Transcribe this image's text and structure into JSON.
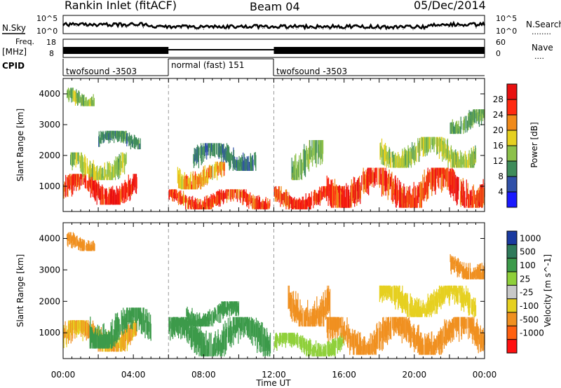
{
  "header": {
    "station": "Rankin Inlet (fitACF)",
    "beam": "Beam 04",
    "date": "05/Dec/2014"
  },
  "noise_panel": {
    "left_label": "N.Sky",
    "right_label": "N.Search",
    "right_dots": "........",
    "y_top": "10^5",
    "y_bottom": "10^0"
  },
  "freq_panel": {
    "left_label_1": "Freq.",
    "left_label_2": "[MHz]",
    "left_ticks": [
      "18",
      "8"
    ],
    "right_label": "Nave",
    "right_dots": "....",
    "right_ticks": [
      "60",
      "0"
    ]
  },
  "cpid_panel": {
    "label": "CPID",
    "segments": [
      {
        "label": "twofsound -3503",
        "start_hour": 0,
        "end_hour": 6
      },
      {
        "label": "normal (fast) 151",
        "start_hour": 6,
        "end_hour": 12
      },
      {
        "label": "twofsound -3503",
        "start_hour": 12,
        "end_hour": 24
      }
    ]
  },
  "time_axis": {
    "label": "Time UT",
    "ticks": [
      "00:00",
      "04:00",
      "08:00",
      "12:00",
      "16:00",
      "20:00",
      "00:00"
    ]
  },
  "range_axis": {
    "label": "Slant Range [km]",
    "ticks": [
      "1000",
      "2000",
      "3000",
      "4000"
    ]
  },
  "power_colorbar": {
    "label": "Power [dB]",
    "ticks": [
      "4",
      "8",
      "12",
      "16",
      "20",
      "24",
      "28"
    ],
    "colors": [
      "#1a1aff",
      "#3050a8",
      "#3f8c5a",
      "#8cc04a",
      "#e6d020",
      "#f08a1a",
      "#ff2a10",
      "#e81010"
    ]
  },
  "velocity_colorbar": {
    "label": "Velocity [m s^-1]",
    "ticks": [
      "1000",
      "500",
      "100",
      "25",
      "-25",
      "-100",
      "-500",
      "-1000"
    ],
    "colors": [
      "#1a3aa0",
      "#2f7a5a",
      "#3c9a4a",
      "#8fd03a",
      "#c8c8c8",
      "#e6d020",
      "#f09020",
      "#ff6010",
      "#ff1010"
    ]
  },
  "chart_data": [
    {
      "type": "heatmap",
      "title": "Power",
      "xlabel": "Time UT",
      "ylabel": "Slant Range [km]",
      "xlim": [
        0,
        24
      ],
      "ylim": [
        180,
        4500
      ],
      "colorbar": "Power [dB]",
      "clim": [
        0,
        30
      ],
      "patches": [
        {
          "t": [
            0.0,
            4.2
          ],
          "r": [
            400,
            1400
          ],
          "v": 28
        },
        {
          "t": [
            0.4,
            3.6
          ],
          "r": [
            1200,
            2100
          ],
          "v": 15
        },
        {
          "t": [
            0.2,
            1.8
          ],
          "r": [
            3600,
            4200
          ],
          "v": 14
        },
        {
          "t": [
            2.0,
            4.4
          ],
          "r": [
            2200,
            2800
          ],
          "v": 10
        },
        {
          "t": [
            6.0,
            11.8
          ],
          "r": [
            250,
            900
          ],
          "v": 26
        },
        {
          "t": [
            6.5,
            9.2
          ],
          "r": [
            900,
            1800
          ],
          "v": 21
        },
        {
          "t": [
            7.4,
            11.0
          ],
          "r": [
            1500,
            2400
          ],
          "v": 9
        },
        {
          "t": [
            12.0,
            16.0
          ],
          "r": [
            250,
            1000
          ],
          "v": 26
        },
        {
          "t": [
            13.0,
            14.8
          ],
          "r": [
            1200,
            2500
          ],
          "v": 13
        },
        {
          "t": [
            15.0,
            24.0
          ],
          "r": [
            300,
            1600
          ],
          "v": 27
        },
        {
          "t": [
            18.0,
            23.5
          ],
          "r": [
            1600,
            2600
          ],
          "v": 15
        },
        {
          "t": [
            22.0,
            24.0
          ],
          "r": [
            2700,
            3500
          ],
          "v": 12
        }
      ]
    },
    {
      "type": "heatmap",
      "title": "Velocity",
      "xlabel": "Time UT",
      "ylabel": "Slant Range [km]",
      "xlim": [
        0,
        24
      ],
      "ylim": [
        180,
        4500
      ],
      "colorbar": "Velocity [m s^-1]",
      "clim": [
        -1000,
        1000
      ],
      "patches": [
        {
          "t": [
            0.0,
            4.2
          ],
          "r": [
            400,
            1400
          ],
          "v": -100
        },
        {
          "t": [
            1.5,
            5.0
          ],
          "r": [
            500,
            1800
          ],
          "v": 300
        },
        {
          "t": [
            0.2,
            1.8
          ],
          "r": [
            3600,
            4200
          ],
          "v": -150
        },
        {
          "t": [
            6.0,
            11.8
          ],
          "r": [
            250,
            1500
          ],
          "v": 200
        },
        {
          "t": [
            7.0,
            10.0
          ],
          "r": [
            1200,
            2000
          ],
          "v": 400
        },
        {
          "t": [
            12.0,
            16.0
          ],
          "r": [
            250,
            1000
          ],
          "v": 60
        },
        {
          "t": [
            12.8,
            15.2
          ],
          "r": [
            1200,
            2500
          ],
          "v": -300
        },
        {
          "t": [
            15.0,
            24.0
          ],
          "r": [
            300,
            1500
          ],
          "v": -250
        },
        {
          "t": [
            18.0,
            23.5
          ],
          "r": [
            1500,
            2500
          ],
          "v": -40
        },
        {
          "t": [
            22.0,
            24.0
          ],
          "r": [
            2700,
            3500
          ],
          "v": -200
        }
      ]
    }
  ]
}
